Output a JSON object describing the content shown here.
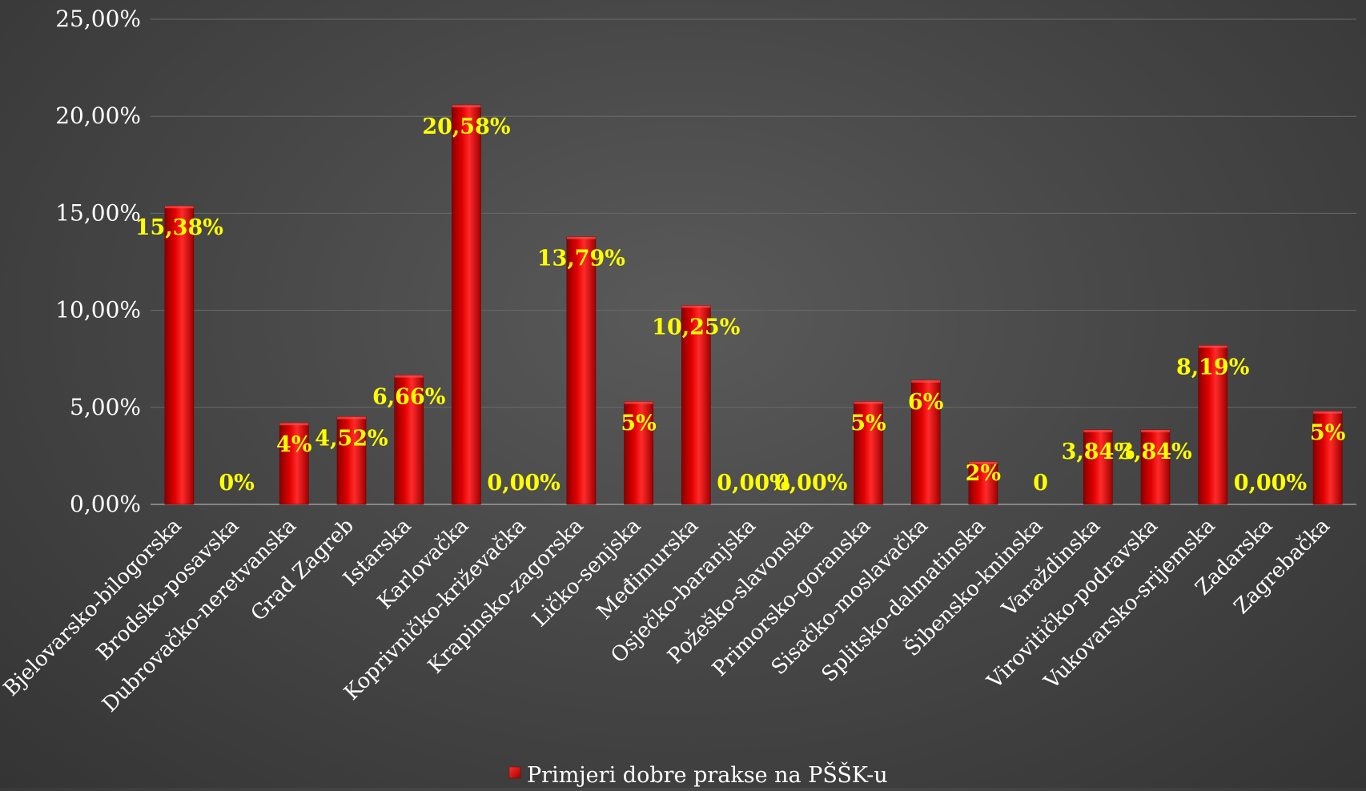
{
  "chart_data": {
    "type": "bar",
    "title": "",
    "xlabel": "",
    "ylabel": "",
    "ylim": [
      0,
      25
    ],
    "yticks": [
      "0,00%",
      "5,00%",
      "10,00%",
      "15,00%",
      "20,00%",
      "25,00%"
    ],
    "categories": [
      "Bjelovarsko-bilogorska",
      "Brodsko-posavska",
      "Dubrovačko-neretvanska",
      "Grad Zagreb",
      "Istarska",
      "Karlovačka",
      "Koprivničko-križevačka",
      "Krapinsko-zagorska",
      "Ličko-senjska",
      "Međimurska",
      "Osječko-baranjska",
      "Požeško-slavonska",
      "Primorsko-goranska",
      "Sisačko-moslavačka",
      "Splitsko-dalmatinska",
      "Šibensko-kninska",
      "Varaždinska",
      "Virovitičko-podravska",
      "Vukovarsko-srijemska",
      "Zadarska",
      "Zagrebačka"
    ],
    "series": [
      {
        "name": "Primjeri dobre prakse na PŠŠK-u",
        "color": "#d40000",
        "values": [
          15.38,
          0,
          4.2,
          4.52,
          6.66,
          20.58,
          0,
          13.79,
          5.3,
          10.25,
          0,
          0,
          5.3,
          6.4,
          2.2,
          0,
          3.84,
          3.84,
          8.19,
          0,
          4.8
        ],
        "labels": [
          "15,38%",
          "0%",
          "4%",
          "4,52%",
          "6,66%",
          "20,58%",
          "0,00%",
          "13,79%",
          "5%",
          "10,25%",
          "0,00%",
          "0,00%",
          "5%",
          "6%",
          "2%",
          "0",
          "3,84%",
          "3,84%",
          "8,19%",
          "0,00%",
          "5%"
        ]
      }
    ],
    "grid": true,
    "legend_position": "bottom",
    "colors": {
      "label": "#ffff00",
      "axis_text": "#ffffff",
      "gridline": "#6a6a6a"
    }
  }
}
